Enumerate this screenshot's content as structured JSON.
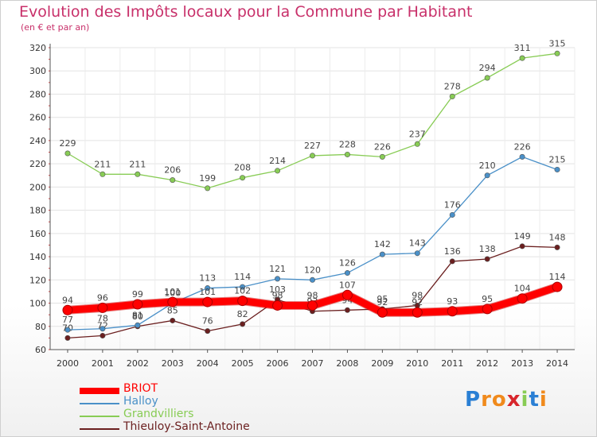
{
  "chart_data": {
    "type": "line",
    "title": "Evolution des Impôts locaux pour la Commune par Habitant",
    "subtitle": "(en € et par an)",
    "xlabel": "",
    "ylabel": "",
    "x": [
      "2000",
      "2001",
      "2002",
      "2003",
      "2004",
      "2005",
      "2006",
      "2007",
      "2008",
      "2009",
      "2010",
      "2011",
      "2012",
      "2013",
      "2014"
    ],
    "ylim": [
      60,
      320
    ],
    "yticks": [
      60,
      80,
      100,
      120,
      140,
      160,
      180,
      200,
      220,
      240,
      260,
      280,
      300,
      320
    ],
    "grid": true,
    "legend_position": "bottom-left",
    "series": [
      {
        "name": "Thieuloy-Saint-Antoine",
        "color": "#6b1f1f",
        "values": [
          70,
          72,
          80,
          85,
          76,
          82,
          103,
          93,
          94,
          95,
          98,
          136,
          138,
          149,
          148
        ]
      },
      {
        "name": "Halloy",
        "color": "#4a90c8",
        "values": [
          77,
          78,
          81,
          100,
          113,
          114,
          121,
          120,
          126,
          142,
          143,
          176,
          210,
          226,
          215
        ]
      },
      {
        "name": "Grandvilliers",
        "color": "#88cc55",
        "values": [
          229,
          211,
          211,
          206,
          199,
          208,
          214,
          227,
          228,
          226,
          237,
          278,
          294,
          311,
          315
        ]
      },
      {
        "name": "BRIOT",
        "color": "#ff0000",
        "values": [
          94,
          96,
          99,
          101,
          101,
          102,
          98,
          98,
          107,
          92,
          92,
          93,
          95,
          104,
          114
        ]
      }
    ]
  },
  "legend": [
    {
      "name": "BRIOT",
      "color": "#ff0000"
    },
    {
      "name": "Halloy",
      "color": "#4a90c8"
    },
    {
      "name": "Grandvilliers",
      "color": "#88cc55"
    },
    {
      "name": "Thieuloy-Saint-Antoine",
      "color": "#6b1f1f"
    }
  ],
  "logo": {
    "letters": [
      "P",
      "r",
      "o",
      "x",
      "i",
      "t",
      "i"
    ],
    "colors": [
      "#2a7fd4",
      "#f08a1c",
      "#f08a1c",
      "#d8262c",
      "#88cc55",
      "#2a7fd4",
      "#f08a1c"
    ]
  }
}
